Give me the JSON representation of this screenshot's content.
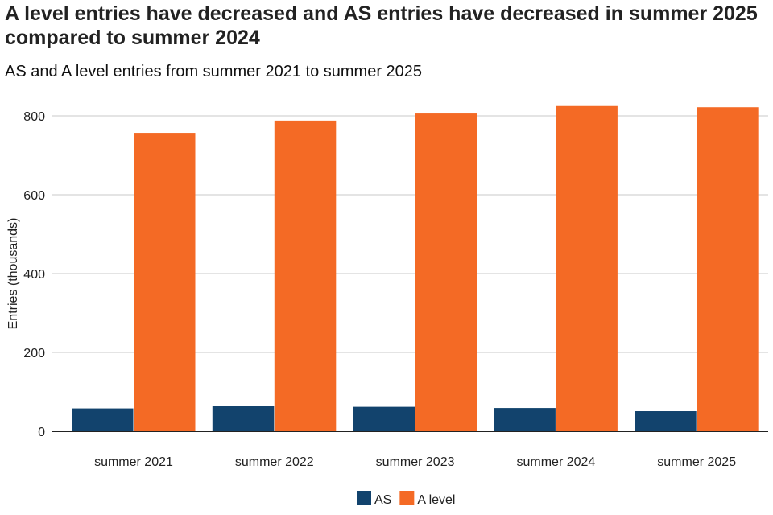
{
  "chart_data": {
    "type": "bar",
    "title": "A level entries have decreased and AS entries have decreased in summer 2025 compared to summer 2024",
    "subtitle": "AS and A level entries from summer 2021 to summer 2025",
    "ylabel": "Entries (thousands)",
    "xlabel": "",
    "ylim": [
      0,
      800
    ],
    "yticks": [
      0,
      200,
      400,
      600,
      800
    ],
    "grid": true,
    "legend_position": "bottom",
    "categories": [
      "summer 2021",
      "summer 2022",
      "summer 2023",
      "summer 2024",
      "summer 2025"
    ],
    "series": [
      {
        "name": "AS",
        "color": "#12436d",
        "values": [
          58,
          64,
          62,
          59,
          51
        ]
      },
      {
        "name": "A level",
        "color": "#f46a25",
        "values": [
          757,
          788,
          806,
          825,
          822
        ]
      }
    ]
  }
}
